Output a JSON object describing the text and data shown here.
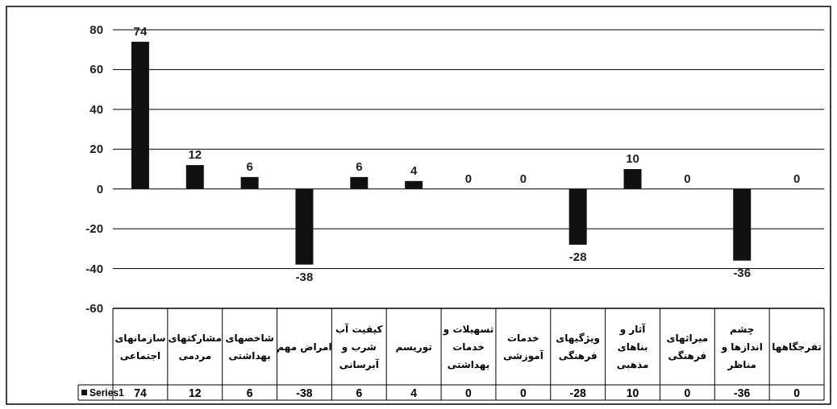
{
  "chart_data": [
    {
      "type": "bar",
      "categories": [
        "سازمانهای اجتماعی",
        "مشارکتهای مردمی",
        "شاخصهای بهداشتی",
        "امراض مهم",
        "کیفیت آب شرب و آبرسانی",
        "توریسم",
        "تسهیلات و خدمات بهداشتی",
        "خدمات آموزشی",
        "ویژگیهای فرهنگی",
        "آثار و بناهای مذهبی",
        "میراثهای فرهنگی",
        "چشم اندازها و مناظر",
        "تفرجگاهها"
      ],
      "series": [
        {
          "color": "#111111",
          "values": [
            74,
            12,
            6,
            -38,
            6,
            4,
            0,
            0,
            -28,
            10,
            0,
            -36,
            0
          ],
          "value_labels": [
            "74",
            "12",
            "6",
            "-38",
            "6",
            "4",
            "0",
            "0",
            "-28",
            "10",
            "0",
            "-36",
            "0"
          ]
        }
      ],
      "ylim": [
        -60,
        80
      ],
      "yticks": [
        -60,
        -40,
        -20,
        0,
        20,
        40,
        60,
        80
      ],
      "grid": "y"
    },
    {
      "type": "other",
      "series": [
        {
          "name": "Series1",
          "color": "#111111",
          "values": [
            74,
            12,
            6,
            -38,
            6,
            4,
            0,
            0,
            -28,
            10,
            0,
            -36,
            0
          ]
        }
      ],
      "data_labels": true,
      "legend": "left"
    }
  ]
}
